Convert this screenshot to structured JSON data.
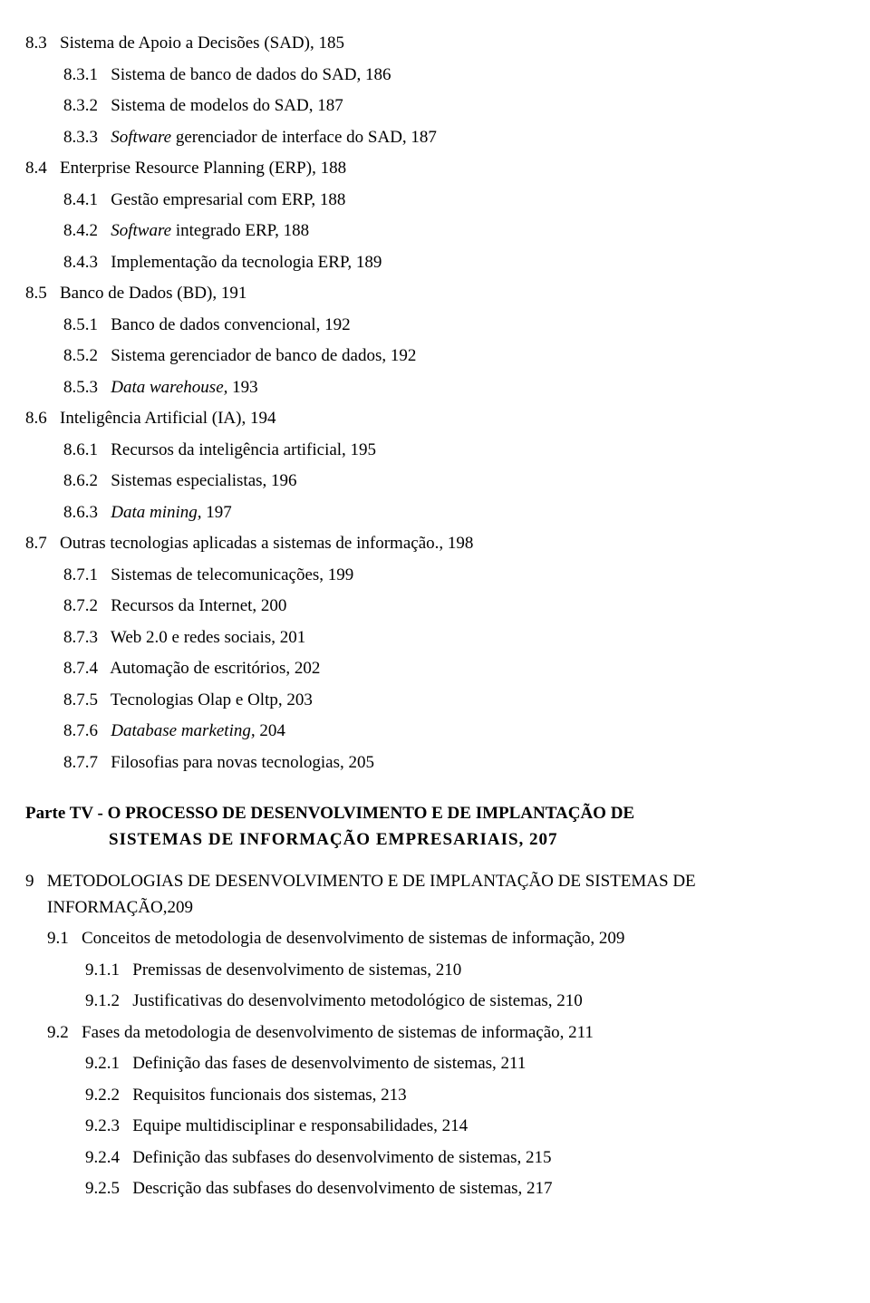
{
  "toc": {
    "sec_8_3": {
      "num": "8.3",
      "title": "Sistema de Apoio a Decisões (SAD), 185"
    },
    "sec_8_3_1": {
      "num": "8.3.1",
      "title": "Sistema de banco de dados do SAD, 186"
    },
    "sec_8_3_2": {
      "num": "8.3.2",
      "title": "Sistema de modelos do SAD, 187"
    },
    "sec_8_3_3": {
      "num": "8.3.3",
      "title_prefix": "Software",
      "title_rest": " gerenciador de interface do SAD, 187"
    },
    "sec_8_4": {
      "num": "8.4",
      "title": "Enterprise Resource Planning (ERP), 188"
    },
    "sec_8_4_1": {
      "num": "8.4.1",
      "title": "Gestão empresarial com ERP, 188"
    },
    "sec_8_4_2": {
      "num": "8.4.2",
      "title_prefix": "Software",
      "title_rest": " integrado ERP, 188"
    },
    "sec_8_4_3": {
      "num": "8.4.3",
      "title": "Implementação da tecnologia ERP, 189"
    },
    "sec_8_5": {
      "num": "8.5",
      "title": "Banco de Dados (BD), 191"
    },
    "sec_8_5_1": {
      "num": "8.5.1",
      "title": "Banco de dados convencional, 192"
    },
    "sec_8_5_2": {
      "num": "8.5.2",
      "title": "Sistema gerenciador de banco de dados, 192"
    },
    "sec_8_5_3": {
      "num": "8.5.3",
      "title_prefix": "Data warehouse,",
      "title_rest": " 193"
    },
    "sec_8_6": {
      "num": "8.6",
      "title": "Inteligência Artificial (IA), 194"
    },
    "sec_8_6_1": {
      "num": "8.6.1",
      "title": "Recursos da inteligência artificial, 195"
    },
    "sec_8_6_2": {
      "num": "8.6.2",
      "title": "Sistemas especialistas, 196"
    },
    "sec_8_6_3": {
      "num": "8.6.3",
      "title_prefix": "Data mining,",
      "title_rest": " 197"
    },
    "sec_8_7": {
      "num": "8.7",
      "title": "Outras tecnologias aplicadas a sistemas de informação., 198"
    },
    "sec_8_7_1": {
      "num": "8.7.1",
      "title": "Sistemas de telecomunicações, 199"
    },
    "sec_8_7_2": {
      "num": "8.7.2",
      "title": "Recursos da Internet, 200"
    },
    "sec_8_7_3": {
      "num": "8.7.3",
      "title": "Web 2.0 e redes sociais, 201"
    },
    "sec_8_7_4": {
      "num": "8.7.4",
      "title": "Automação de escritórios, 202"
    },
    "sec_8_7_5": {
      "num": "8.7.5",
      "title": "Tecnologias Olap e Oltp, 203"
    },
    "sec_8_7_6": {
      "num": "8.7.6",
      "title_prefix": "Database marketing,",
      "title_rest": " 204"
    },
    "sec_8_7_7": {
      "num": "8.7.7",
      "title": "Filosofias para novas tecnologias, 205"
    }
  },
  "part4": {
    "line1": "Parte TV - O PROCESSO DE DESENVOLVIMENTO E DE IMPLANTAÇÃO DE",
    "line2": "SISTEMAS  DE  INFORMAÇÃO  EMPRESARIAIS, 207"
  },
  "ch9": {
    "num": "9",
    "line1": "METODOLOGIAS DE DESENVOLVIMENTO E DE IMPLANTAÇÃO DE SISTEMAS DE",
    "line2": "INFORMAÇÃO,209",
    "sec_9_1": {
      "num": "9.1",
      "title": "Conceitos de metodologia de desenvolvimento de sistemas de informação, 209"
    },
    "sec_9_1_1": {
      "num": "9.1.1",
      "title": "Premissas de desenvolvimento de sistemas, 210"
    },
    "sec_9_1_2": {
      "num": "9.1.2",
      "title": "Justificativas do desenvolvimento metodológico de sistemas, 210"
    },
    "sec_9_2": {
      "num": "9.2",
      "title": "Fases da metodologia de desenvolvimento de sistemas de informação, 211"
    },
    "sec_9_2_1": {
      "num": "9.2.1",
      "title": "Definição das fases de desenvolvimento de sistemas, 211"
    },
    "sec_9_2_2": {
      "num": "9.2.2",
      "title": "Requisitos funcionais dos sistemas, 213"
    },
    "sec_9_2_3": {
      "num": "9.2.3",
      "title": "Equipe multidisciplinar e responsabilidades, 214"
    },
    "sec_9_2_4": {
      "num": "9.2.4",
      "title": "Definição das subfases do desenvolvimento de sistemas, 215"
    },
    "sec_9_2_5": {
      "num": "9.2.5",
      "title": "Descrição das subfases do desenvolvimento de sistemas, 217"
    }
  }
}
